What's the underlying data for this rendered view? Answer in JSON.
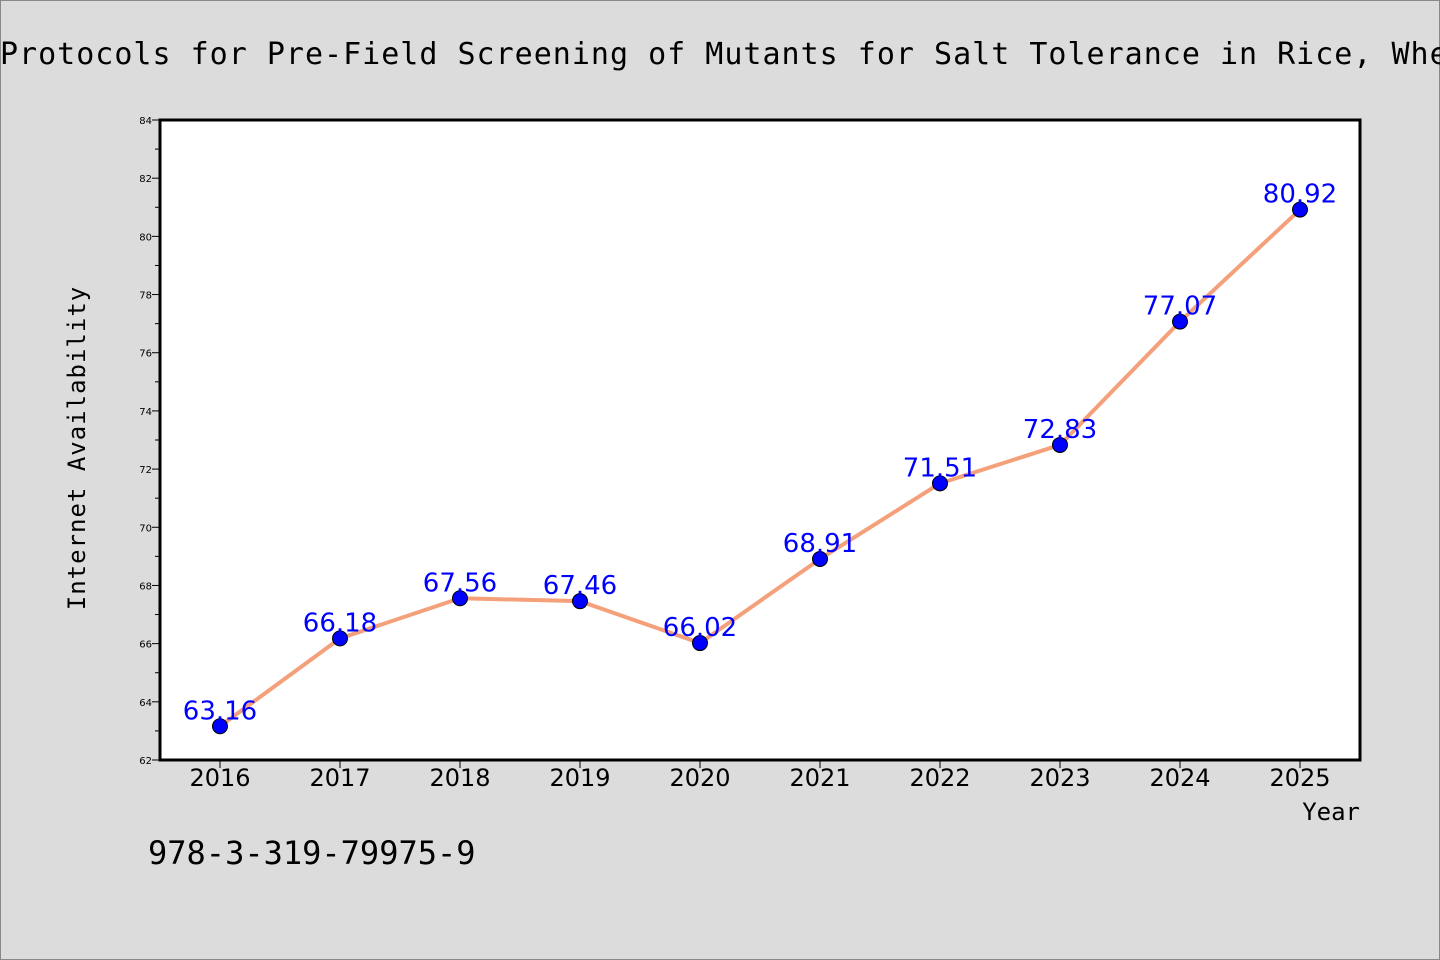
{
  "page": {
    "title": "Protocols for Pre-Field Screening of Mutants for Salt Tolerance in Rice, Wheat a",
    "footer_text": "978-3-319-79975-9"
  },
  "colors": {
    "background": "#dcdcdc",
    "plot_background": "#ffffff",
    "line": "#f4a07a",
    "marker": "#0000ff",
    "label": "#0000ff"
  },
  "chart_data": {
    "type": "line",
    "title": "Protocols for Pre-Field Screening of Mutants for Salt Tolerance in Rice, Wheat a",
    "xlabel": "Year",
    "ylabel": "Internet Availability",
    "categories": [
      "2016",
      "2017",
      "2018",
      "2019",
      "2020",
      "2021",
      "2022",
      "2023",
      "2024",
      "2025"
    ],
    "series": [
      {
        "values": [
          63.16,
          66.18,
          67.56,
          67.46,
          66.02,
          68.91,
          71.51,
          72.83,
          77.07,
          80.92
        ]
      }
    ],
    "data_labels": [
      "63.16",
      "66.18",
      "67.56",
      "67.46",
      "66.02",
      "68.91",
      "71.51",
      "72.83",
      "77.07",
      "80.92"
    ],
    "ylim": [
      62,
      84
    ],
    "yticks": [
      "62",
      "64",
      "66",
      "68",
      "70",
      "72",
      "74",
      "76",
      "78",
      "80",
      "82",
      "84"
    ],
    "grid": false,
    "legend": "none"
  }
}
